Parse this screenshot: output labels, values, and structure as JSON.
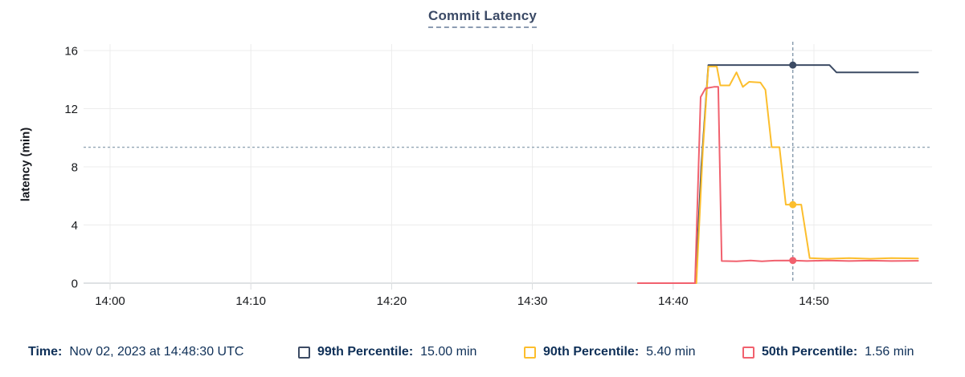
{
  "title": "Commit Latency",
  "footer": {
    "time_label": "Time:",
    "time_value": "Nov 02, 2023 at 14:48:30 UTC",
    "legend": [
      {
        "id": "p99",
        "label": "99th Percentile:",
        "value": "15.00 min",
        "color": "#3c4b64"
      },
      {
        "id": "p90",
        "label": "90th Percentile:",
        "value": "5.40 min",
        "color": "#fcbe2d"
      },
      {
        "id": "p50",
        "label": "50th Percentile:",
        "value": "1.56 min",
        "color": "#f1616e"
      }
    ]
  },
  "chart_data": {
    "type": "line",
    "title": "Commit Latency",
    "xlabel": "",
    "ylabel": "latency (min)",
    "ylim": [
      0,
      16
    ],
    "yticks": [
      0,
      4,
      8,
      12,
      16
    ],
    "x_unit": "minutes after 14:00 UTC",
    "x_range_minutes": [
      -1.9,
      58.6
    ],
    "xticks": [
      {
        "t": 0,
        "label": "14:00"
      },
      {
        "t": 10,
        "label": "14:10"
      },
      {
        "t": 20,
        "label": "14:20"
      },
      {
        "t": 30,
        "label": "14:30"
      },
      {
        "t": 40,
        "label": "14:40"
      },
      {
        "t": 50,
        "label": "14:50"
      }
    ],
    "grid": true,
    "legend_position": "bottom",
    "threshold": {
      "value": 9.35,
      "style": "dashed",
      "color": "#93a6b5"
    },
    "cursor": {
      "t": 48.5,
      "time": "14:48:30",
      "color": "#7e93a7"
    },
    "series": [
      {
        "id": "p99",
        "name": "99th Percentile",
        "color": "#3c4b64",
        "cursor_value": 15.0,
        "points": [
          [
            37.5,
            0
          ],
          [
            41.6,
            0
          ],
          [
            42.0,
            8
          ],
          [
            42.5,
            15
          ],
          [
            51.1,
            15
          ],
          [
            51.6,
            14.5
          ],
          [
            57.4,
            14.5
          ]
        ]
      },
      {
        "id": "p90",
        "name": "90th Percentile",
        "color": "#fcbe2d",
        "cursor_value": 5.4,
        "points": [
          [
            37.5,
            0
          ],
          [
            41.65,
            0
          ],
          [
            42.1,
            9
          ],
          [
            42.5,
            14.9
          ],
          [
            43.1,
            14.9
          ],
          [
            43.35,
            13.6
          ],
          [
            44.0,
            13.6
          ],
          [
            44.5,
            14.5
          ],
          [
            44.95,
            13.5
          ],
          [
            45.4,
            13.85
          ],
          [
            46.2,
            13.8
          ],
          [
            46.55,
            13.3
          ],
          [
            47.0,
            9.35
          ],
          [
            47.55,
            9.35
          ],
          [
            48.0,
            5.4
          ],
          [
            49.1,
            5.4
          ],
          [
            49.7,
            1.72
          ],
          [
            51.0,
            1.68
          ],
          [
            52.5,
            1.72
          ],
          [
            54.0,
            1.68
          ],
          [
            55.5,
            1.72
          ],
          [
            57.4,
            1.7
          ]
        ]
      },
      {
        "id": "p50",
        "name": "50th Percentile",
        "color": "#f1616e",
        "cursor_value": 1.56,
        "points": [
          [
            37.5,
            0
          ],
          [
            41.55,
            0
          ],
          [
            41.95,
            12.8
          ],
          [
            42.3,
            13.4
          ],
          [
            42.9,
            13.5
          ],
          [
            43.2,
            13.5
          ],
          [
            43.45,
            1.52
          ],
          [
            44.5,
            1.5
          ],
          [
            45.5,
            1.56
          ],
          [
            46.3,
            1.5
          ],
          [
            47.2,
            1.55
          ],
          [
            48.5,
            1.56
          ],
          [
            49.5,
            1.52
          ],
          [
            51.0,
            1.56
          ],
          [
            52.5,
            1.52
          ],
          [
            54.0,
            1.55
          ],
          [
            55.5,
            1.52
          ],
          [
            57.4,
            1.54
          ]
        ]
      }
    ]
  }
}
